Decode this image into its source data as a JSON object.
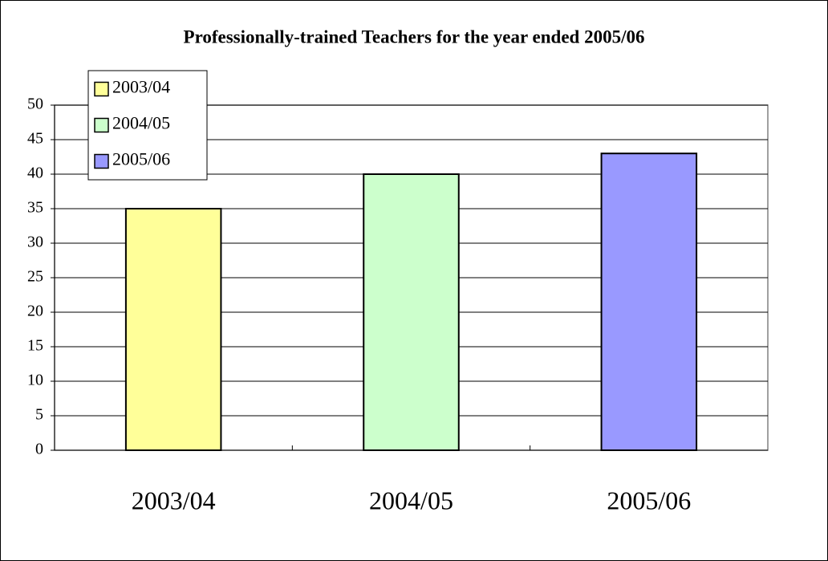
{
  "chart_data": {
    "type": "bar",
    "title": "Professionally-trained Teachers for the year ended 2005/06",
    "categories": [
      "2003/04",
      "2004/05",
      "2005/06"
    ],
    "values": [
      35,
      40,
      43
    ],
    "colors": [
      "#ffff99",
      "#ccffcc",
      "#9999ff"
    ],
    "ylim": [
      0,
      50
    ],
    "yticks": [
      0,
      5,
      10,
      15,
      20,
      25,
      30,
      35,
      40,
      45,
      50
    ],
    "grid": true
  }
}
